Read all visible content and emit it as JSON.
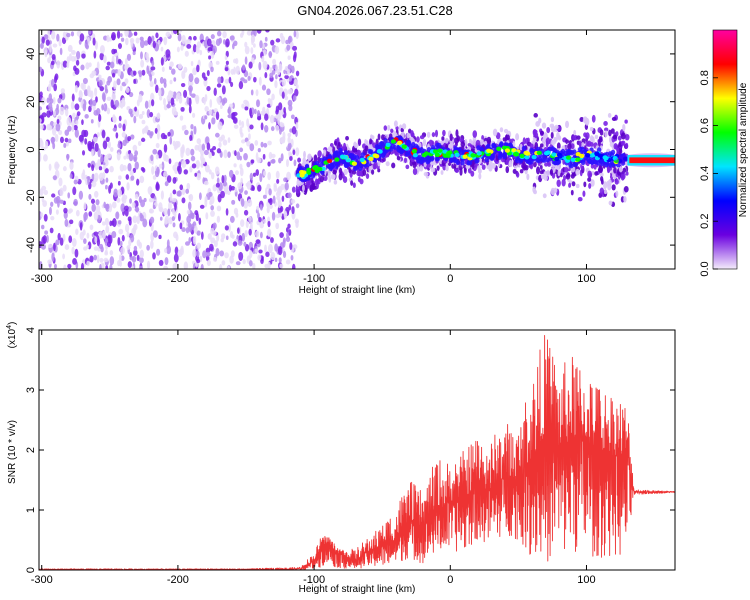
{
  "title": "GN04.2026.067.23.51.C28",
  "chart_data": [
    {
      "type": "heatmap",
      "name": "spectrogram",
      "xlabel": "Height of straight line (km)",
      "ylabel": "Frequency (Hz)",
      "xlim": [
        -302,
        165
      ],
      "ylim": [
        -50,
        50
      ],
      "xticks": [
        -300,
        -200,
        -100,
        0,
        100
      ],
      "yticks": [
        -40,
        -20,
        0,
        20,
        40
      ],
      "colorbar": {
        "label": "Normalized spectral amplitude",
        "range": [
          0.0,
          1.0
        ],
        "ticks": [
          0.0,
          0.2,
          0.4,
          0.6,
          0.8
        ],
        "colormap": [
          "#f4ecfb",
          "#6a00e0",
          "#0000ff",
          "#00e5ff",
          "#00ff00",
          "#ffff00",
          "#ff0000",
          "#ff00a0"
        ]
      },
      "regions": [
        {
          "x_range": [
            -302,
            -112
          ],
          "freq_range": [
            -50,
            50
          ],
          "amplitude": "low (0.0-0.2), noise"
        },
        {
          "x_range": [
            -112,
            130
          ],
          "freq_range": [
            -30,
            18
          ],
          "amplitude": "signal band, peaks 0.6-0.9"
        },
        {
          "x_range": [
            130,
            165
          ],
          "freq_range": [
            -8,
            0
          ],
          "amplitude": "high (0.9-1.0)"
        }
      ],
      "ridge": {
        "x": [
          -112,
          -100,
          -90,
          -80,
          -70,
          -60,
          -50,
          -40,
          -30,
          -20,
          -10,
          0,
          10,
          20,
          30,
          40,
          50,
          60,
          70,
          80,
          90,
          100,
          110,
          120,
          130,
          140,
          150,
          160
        ],
        "y": [
          -11,
          -9,
          -6,
          -3,
          -6,
          -4,
          0,
          3,
          0,
          -3,
          -1,
          -2,
          -3,
          -2,
          -1,
          0,
          -2,
          -3,
          -2,
          -3,
          -4,
          -2,
          -3,
          -4,
          -4,
          -5,
          -4,
          -4
        ]
      }
    },
    {
      "type": "line",
      "name": "snr",
      "xlabel": "Height of straight line (km)",
      "ylabel": "SNR (10 * v/v)",
      "y_multiplier": "(x10^4)",
      "multiplier_base": "(x10",
      "multiplier_exp": "4",
      "xlim": [
        -302,
        165
      ],
      "ylim": [
        0,
        4
      ],
      "xticks": [
        -300,
        -200,
        -100,
        0,
        100
      ],
      "yticks": [
        0,
        1,
        2,
        3,
        4
      ],
      "series": [
        {
          "color": "#ee3333",
          "x": [
            -300,
            -250,
            -200,
            -150,
            -110,
            -100,
            -95,
            -90,
            -85,
            -80,
            -70,
            -60,
            -50,
            -40,
            -30,
            -20,
            -10,
            0,
            10,
            20,
            30,
            40,
            50,
            60,
            70,
            80,
            90,
            100,
            110,
            120,
            130,
            135,
            145,
            155,
            165
          ],
          "y": [
            0.01,
            0.01,
            0.01,
            0.01,
            0.02,
            0.15,
            0.35,
            0.45,
            0.3,
            0.25,
            0.15,
            0.3,
            0.4,
            0.5,
            0.8,
            0.7,
            1.0,
            1.1,
            1.2,
            1.4,
            1.3,
            1.5,
            1.5,
            1.8,
            2.3,
            2.0,
            2.2,
            2.1,
            2.0,
            1.9,
            1.9,
            1.3,
            1.3,
            1.3,
            1.3
          ],
          "envelope_max": [
            0.02,
            0.02,
            0.02,
            0.02,
            0.05,
            0.3,
            0.55,
            0.6,
            0.45,
            0.35,
            0.35,
            0.55,
            0.75,
            1.1,
            1.5,
            1.3,
            1.9,
            1.8,
            2.0,
            2.3,
            2.2,
            2.5,
            2.4,
            3.3,
            4.0,
            3.4,
            3.6,
            3.4,
            3.1,
            3.0,
            2.8,
            1.35,
            1.33,
            1.32,
            1.3
          ],
          "envelope_min": [
            0.0,
            0.0,
            0.0,
            0.0,
            0.0,
            0.02,
            0.05,
            0.1,
            0.05,
            0.03,
            0.02,
            0.05,
            0.05,
            0.1,
            0.2,
            0.1,
            0.3,
            0.3,
            0.3,
            0.5,
            0.4,
            0.6,
            0.5,
            0.2,
            0.1,
            0.2,
            0.3,
            0.2,
            0.2,
            0.2,
            0.2,
            1.25,
            1.27,
            1.28,
            1.28
          ]
        }
      ]
    }
  ]
}
